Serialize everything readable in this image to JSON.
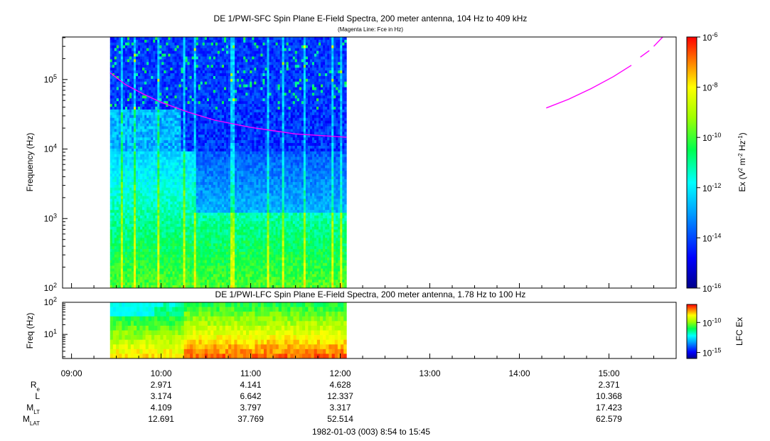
{
  "chart_data": [
    {
      "type": "heatmap",
      "title": "DE 1/PWI-SFC  Spin Plane E-Field Spectra, 200 meter antenna, 104 Hz to 409 kHz",
      "subtitle": "(Magenta Line: Fce in Hz)",
      "ylabel": "Frequency (Hz)",
      "yscale": "log",
      "ylim": [
        100,
        409000
      ],
      "y_ticks": [
        {
          "value": 100,
          "base": "10",
          "exp": "2"
        },
        {
          "value": 1000,
          "base": "10",
          "exp": "3"
        },
        {
          "value": 10000,
          "base": "10",
          "exp": "4"
        },
        {
          "value": 100000,
          "base": "10",
          "exp": "5"
        }
      ],
      "data_interval_hours": [
        9.43,
        12.07
      ],
      "colorbar": {
        "label": "Ex (V² m⁻² Hz⁻¹)",
        "label_parts": {
          "pre": "Ex (V",
          "e1": "2",
          "mid": " m",
          "e2": "-2",
          "mid2": " Hz",
          "e3": "-1",
          "post": ")"
        },
        "scale": "log",
        "range": [
          1e-16,
          1e-06
        ],
        "ticks": [
          {
            "value": 1e-06,
            "base": "10",
            "exp": "-6"
          },
          {
            "value": 1e-08,
            "base": "10",
            "exp": "-8"
          },
          {
            "value": 1e-10,
            "base": "10",
            "exp": "-10"
          },
          {
            "value": 1e-12,
            "base": "10",
            "exp": "-12"
          },
          {
            "value": 1e-14,
            "base": "10",
            "exp": "-14"
          },
          {
            "value": 1e-16,
            "base": "10",
            "exp": "-16"
          }
        ]
      },
      "fce_line": {
        "name": "Fce",
        "color": "#ff00ff",
        "segments": [
          [
            [
              9.43,
              125000
            ],
            [
              9.6,
              85000
            ],
            [
              9.8,
              62000
            ],
            [
              10.0,
              47000
            ],
            [
              10.3,
              34000
            ],
            [
              10.6,
              26000
            ],
            [
              11.0,
              20500
            ],
            [
              11.5,
              16500
            ],
            [
              12.0,
              15000
            ],
            [
              12.07,
              14800
            ]
          ],
          [
            [
              14.3,
              39000
            ],
            [
              14.55,
              52000
            ],
            [
              14.8,
              74000
            ],
            [
              15.05,
              110000
            ],
            [
              15.25,
              160000
            ]
          ],
          [
            [
              15.35,
              210000
            ],
            [
              15.45,
              260000
            ]
          ],
          [
            [
              15.5,
              300000
            ],
            [
              15.6,
              409000
            ]
          ]
        ]
      }
    },
    {
      "type": "heatmap",
      "title": "DE 1/PWI-LFC  Spin Plane E-Field Spectra, 200 meter antenna, 1.78 Hz to 100 Hz",
      "ylabel": "Freq (Hz)",
      "yscale": "log",
      "ylim": [
        1.78,
        100
      ],
      "y_ticks": [
        {
          "value": 100,
          "base": "10",
          "exp": "2"
        },
        {
          "value": 10,
          "base": "10",
          "exp": "1"
        }
      ],
      "data_interval_hours": [
        9.43,
        12.07
      ],
      "colorbar": {
        "label": "LFC Ex",
        "scale": "log",
        "range": [
          1e-16,
          1e-07
        ],
        "ticks": [
          {
            "value": 1e-10,
            "base": "10",
            "exp": "-10"
          },
          {
            "value": 1e-15,
            "base": "10",
            "exp": "-15"
          }
        ]
      }
    }
  ],
  "x_axis": {
    "start_hour": 8.9,
    "end_hour": 15.75,
    "ticks": [
      {
        "hour": 9,
        "label": "09:00"
      },
      {
        "hour": 10,
        "label": "10:00"
      },
      {
        "hour": 11,
        "label": "11:00"
      },
      {
        "hour": 12,
        "label": "12:00"
      },
      {
        "hour": 13,
        "label": "13:00"
      },
      {
        "hour": 14,
        "label": "14:00"
      },
      {
        "hour": 15,
        "label": "15:00"
      }
    ],
    "ephemeris": {
      "rows": [
        {
          "main": "R",
          "sub": "e"
        },
        {
          "main": "L",
          "sub": ""
        },
        {
          "main": "M",
          "sub": "LT"
        },
        {
          "main": "M",
          "sub": "LAT"
        }
      ],
      "columns": [
        {
          "hour": 10,
          "values": [
            "2.971",
            "3.174",
            "4.109",
            "12.691"
          ]
        },
        {
          "hour": 11,
          "values": [
            "4.141",
            "6.642",
            "3.797",
            "37.769"
          ]
        },
        {
          "hour": 12,
          "values": [
            "4.628",
            "12.337",
            "3.317",
            "52.514"
          ]
        },
        {
          "hour": 15,
          "values": [
            "2.371",
            "10.368",
            "17.423",
            "62.579"
          ]
        }
      ]
    },
    "footer": "1982-01-03 (003) 8:54 to 15:45"
  }
}
